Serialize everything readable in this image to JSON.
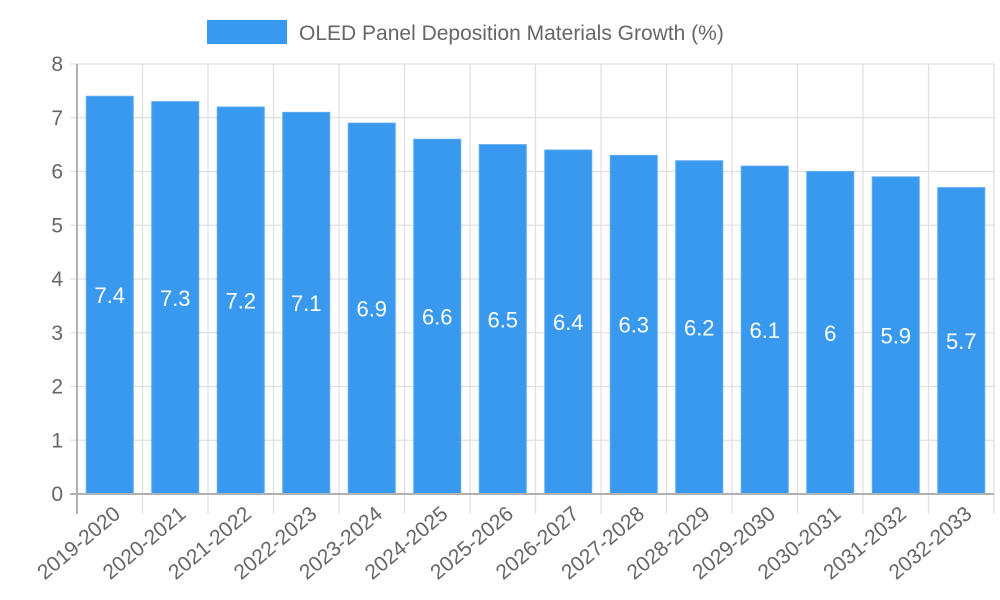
{
  "chart_data": {
    "type": "bar",
    "title": "",
    "xlabel": "",
    "ylabel": "",
    "legend": {
      "position": "top",
      "entries": [
        "OLED Panel Deposition Materials Growth (%)"
      ]
    },
    "categories": [
      "2019-2020",
      "2020-2021",
      "2021-2022",
      "2022-2023",
      "2023-2024",
      "2024-2025",
      "2025-2026",
      "2026-2027",
      "2027-2028",
      "2028-2029",
      "2029-2030",
      "2030-2031",
      "2031-2032",
      "2032-2033"
    ],
    "series": [
      {
        "name": "OLED Panel Deposition Materials Growth (%)",
        "values": [
          7.4,
          7.3,
          7.2,
          7.1,
          6.9,
          6.6,
          6.5,
          6.4,
          6.3,
          6.2,
          6.1,
          6,
          5.9,
          5.7
        ],
        "color": "#3899ef"
      }
    ],
    "data_labels": [
      "7.4",
      "7.3",
      "7.2",
      "7.1",
      "6.9",
      "6.6",
      "6.5",
      "6.4",
      "6.3",
      "6.2",
      "6.1",
      "6",
      "5.9",
      "5.7"
    ],
    "ylim": [
      0,
      8
    ],
    "yticks": [
      0,
      1,
      2,
      3,
      4,
      5,
      6,
      7,
      8
    ],
    "grid": true
  }
}
